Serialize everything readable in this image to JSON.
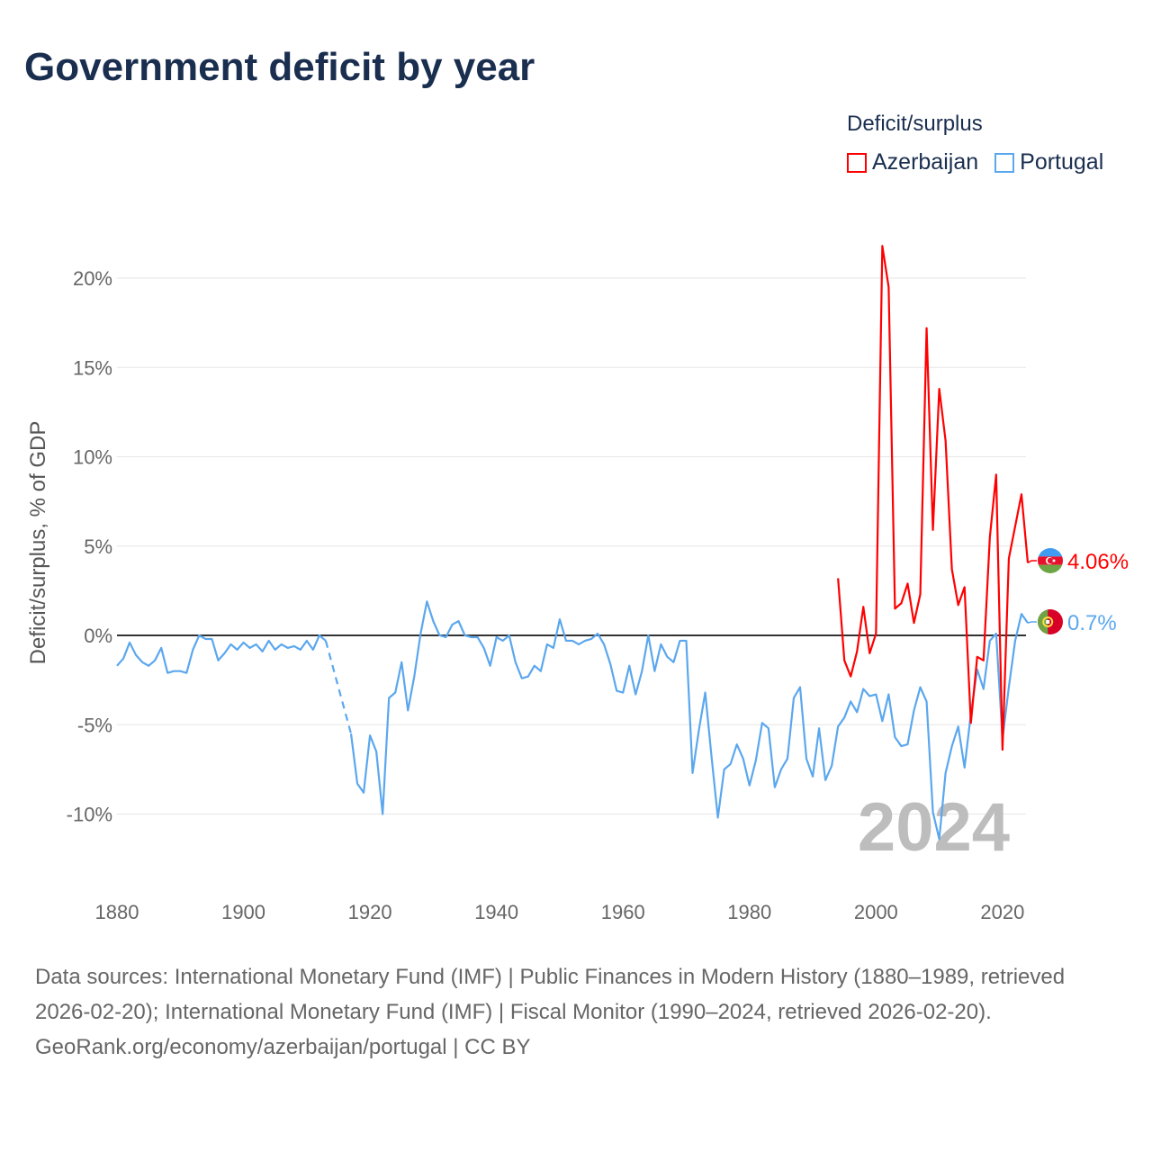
{
  "title": "Government deficit by year",
  "legend": {
    "title": "Deficit/surplus",
    "position": "top-right"
  },
  "watermark_year": "2024",
  "footer": {
    "sources": "Data sources: International Monetary Fund (IMF) | Public Finances in Modern History (1880–1989, retrieved 2026-02-20); International Monetary Fund (IMF) | Fiscal Monitor (1990–2024, retrieved 2026-02-20).",
    "credit": "GeoRank.org/economy/azerbaijan/portugal | CC BY"
  },
  "chart_data": {
    "type": "line",
    "title": "Government deficit by year",
    "xlabel": "",
    "ylabel": "Deficit/surplus, % of GDP",
    "xlim": [
      1880,
      2024
    ],
    "ylim": [
      -12,
      22
    ],
    "grid": true,
    "x_ticks": [
      1880,
      1900,
      1920,
      1940,
      1960,
      1980,
      2000,
      2020
    ],
    "x_tick_labels": [
      "1880",
      "1900",
      "1920",
      "1940",
      "1960",
      "1980",
      "2000",
      "2020"
    ],
    "y_ticks": [
      -10,
      -5,
      0,
      5,
      10,
      15,
      20
    ],
    "y_tick_labels": [
      "-10%",
      "-5%",
      "0%",
      "5%",
      "10%",
      "15%",
      "20%"
    ],
    "series": [
      {
        "name": "Azerbaijan",
        "color": "#ff0000",
        "end_label": "4.06%",
        "start_year": 1994,
        "values": [
          3.2,
          -1.4,
          -2.3,
          -0.9,
          1.6,
          -1.0,
          0.1,
          21.8,
          19.5,
          1.5,
          1.8,
          2.9,
          0.7,
          2.3,
          17.2,
          5.9,
          13.8,
          10.9,
          3.7,
          1.7,
          2.7,
          -4.9,
          -1.2,
          -1.4,
          5.5,
          9.0,
          -6.4,
          4.3,
          6.1,
          7.9,
          4.06
        ]
      },
      {
        "name": "Portugal",
        "color": "#5ba7ee",
        "end_label": "0.7%",
        "start_year": 1880,
        "values": [
          -1.7,
          -1.3,
          -0.4,
          -1.1,
          -1.5,
          -1.7,
          -1.4,
          -0.7,
          -2.1,
          -2.0,
          -2.0,
          -2.1,
          -0.8,
          0.0,
          -0.2,
          -0.2,
          -1.4,
          -1.0,
          -0.5,
          -0.8,
          -0.4,
          -0.7,
          -0.5,
          -0.9,
          -0.3,
          -0.8,
          -0.5,
          -0.7,
          -0.6,
          -0.8,
          -0.3,
          -0.8,
          0.0,
          -0.3,
          null,
          null,
          null,
          -5.5,
          -8.3,
          -8.8,
          -5.6,
          -6.5,
          -10.0,
          -3.5,
          -3.2,
          -1.5,
          -4.2,
          -2.3,
          0.1,
          1.9,
          0.8,
          0.0,
          -0.1,
          0.6,
          0.8,
          0.0,
          -0.1,
          -0.1,
          -0.7,
          -1.7,
          -0.1,
          -0.3,
          0.0,
          -1.5,
          -2.4,
          -2.3,
          -1.7,
          -2.0,
          -0.5,
          -0.7,
          0.9,
          -0.3,
          -0.3,
          -0.5,
          -0.3,
          -0.2,
          0.1,
          -0.5,
          -1.6,
          -3.1,
          -3.2,
          -1.7,
          -3.3,
          -2.0,
          0.0,
          -2.0,
          -0.5,
          -1.2,
          -1.5,
          -0.3,
          -0.3,
          -7.7,
          -5.3,
          -3.2,
          -6.8,
          -10.2,
          -7.5,
          -7.2,
          -6.1,
          -6.9,
          -8.4,
          -7.0,
          -4.9,
          -5.2,
          -8.5,
          -7.5,
          -6.9,
          -3.5,
          -2.9,
          -6.9,
          -7.9,
          -5.2,
          -8.1,
          -7.3,
          -5.1,
          -4.6,
          -3.7,
          -4.3,
          -3.0,
          -3.4,
          -3.3,
          -4.8,
          -3.3,
          -5.7,
          -6.2,
          -6.1,
          -4.2,
          -2.9,
          -3.7,
          -9.9,
          -11.4,
          -7.7,
          -6.2,
          -5.1,
          -7.4,
          -4.4,
          -1.9,
          -3.0,
          -0.3,
          0.1,
          -5.8,
          -2.9,
          -0.3,
          1.2,
          0.7
        ]
      }
    ]
  }
}
